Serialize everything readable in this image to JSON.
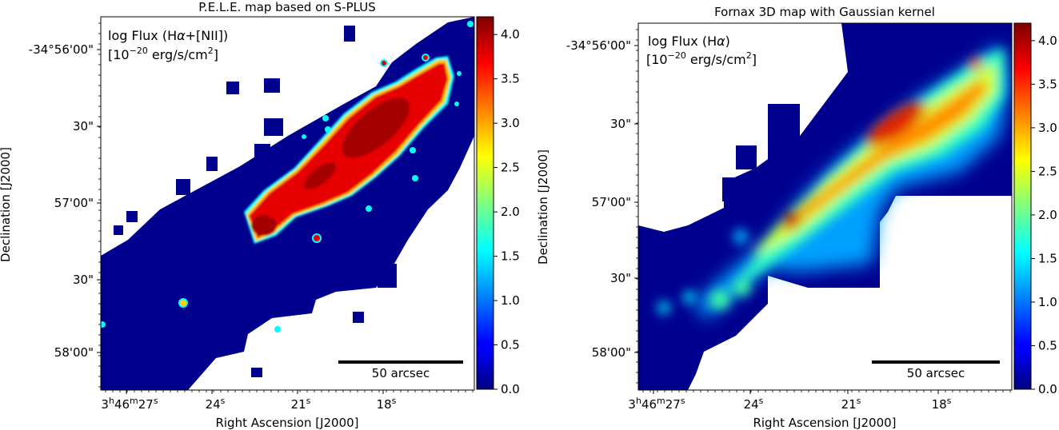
{
  "chart_data": [
    {
      "type": "heatmap",
      "title": "P.E.L.E. map based on S-PLUS",
      "annotation": {
        "line1_pre": "log Flux (H",
        "line1_alpha": "α",
        "line1_post": "+[NII])",
        "line2_pre": "[10",
        "line2_exp": "−20",
        "line2_mid": " erg/s/cm",
        "line2_sup": "2",
        "line2_post": "]"
      },
      "xlabel": "Right Ascension [J2000]",
      "ylabel": "Declination [J2000]",
      "x_ticks": [
        {
          "pre": "3",
          "s1": "h",
          "mid": "46",
          "s2": "m",
          "post": "27",
          "s3": "s"
        },
        {
          "pre": "",
          "s1": "",
          "mid": "",
          "s2": "",
          "post": "24",
          "s3": "s"
        },
        {
          "pre": "",
          "s1": "",
          "mid": "",
          "s2": "",
          "post": "21",
          "s3": "s"
        },
        {
          "pre": "",
          "s1": "",
          "mid": "",
          "s2": "",
          "post": "18",
          "s3": "s"
        }
      ],
      "y_ticks": [
        "-34°56'00\"",
        "30\"",
        "57'00\"",
        "30\"",
        "58'00\""
      ],
      "colorbar": {
        "min": 0.0,
        "max": 4.2,
        "ticks": [
          "0.0",
          "0.5",
          "1.0",
          "1.5",
          "2.0",
          "2.5",
          "3.0",
          "3.5",
          "4.0"
        ],
        "colormap": "jet"
      },
      "scalebar_label": "50 arcsec",
      "morphology": "bright elongated ridge along a diagonal from lower-left to upper-right; compact knots; peak log flux ~4.2"
    },
    {
      "type": "heatmap",
      "title": "Fornax 3D map with Gaussian kernel",
      "annotation": {
        "line1_pre": "log Flux (H",
        "line1_alpha": "α",
        "line1_post": ")",
        "line2_pre": "[10",
        "line2_exp": "−20",
        "line2_mid": " erg/s/cm",
        "line2_sup": "2",
        "line2_post": "]"
      },
      "xlabel": "Right Ascension [J2000]",
      "ylabel": "Declination [J2000]",
      "x_ticks": [
        {
          "pre": "3",
          "s1": "h",
          "mid": "46",
          "s2": "m",
          "post": "27",
          "s3": "s"
        },
        {
          "pre": "",
          "s1": "",
          "mid": "",
          "s2": "",
          "post": "24",
          "s3": "s"
        },
        {
          "pre": "",
          "s1": "",
          "mid": "",
          "s2": "",
          "post": "21",
          "s3": "s"
        },
        {
          "pre": "",
          "s1": "",
          "mid": "",
          "s2": "",
          "post": "18",
          "s3": "s"
        }
      ],
      "y_ticks": [
        "-34°56'00\"",
        "30\"",
        "57'00\"",
        "30\"",
        "58'00\""
      ],
      "colorbar": {
        "min": 0.0,
        "max": 4.2,
        "ticks": [
          "0.0",
          "0.5",
          "1.0",
          "1.5",
          "2.0",
          "2.5",
          "3.0",
          "3.5",
          "4.0"
        ],
        "colormap": "jet"
      },
      "scalebar_label": "50 arcsec",
      "morphology": "smooth diffuse emission along the same diagonal; peak log flux ~4.2 near the centre"
    }
  ]
}
